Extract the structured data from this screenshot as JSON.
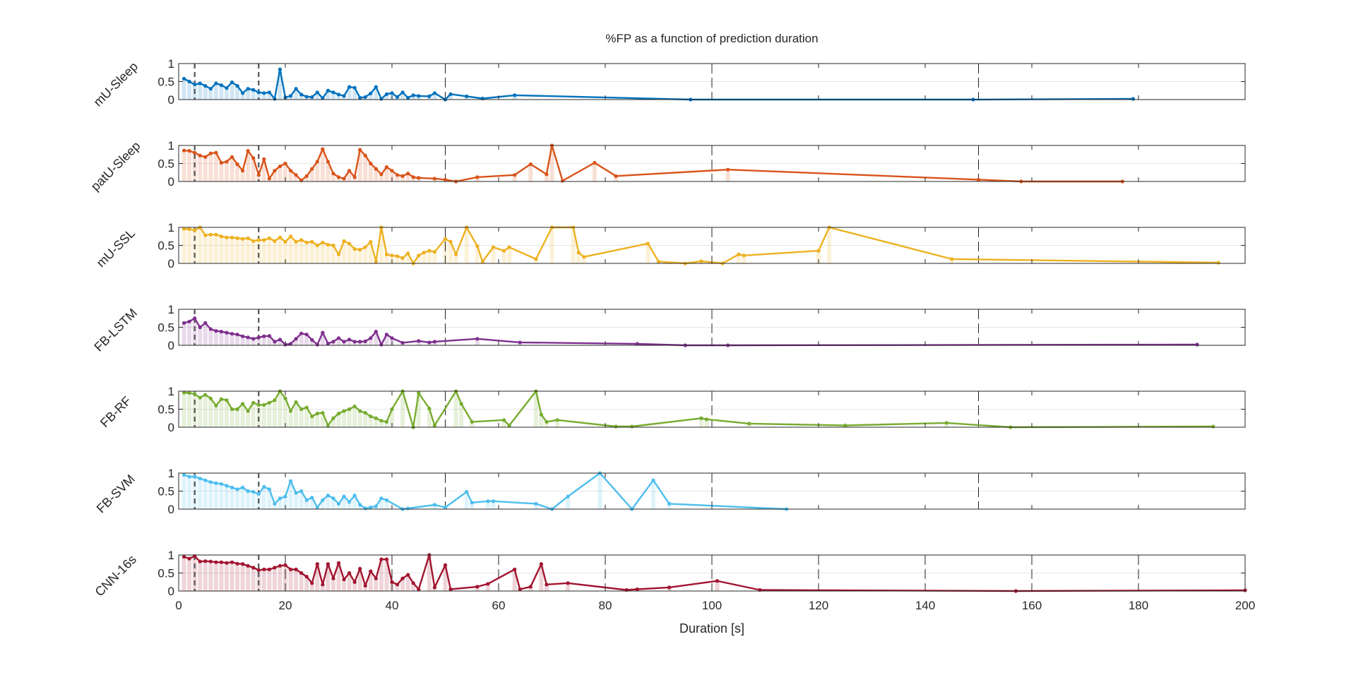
{
  "chart_data": {
    "type": "line",
    "title": "%FP as a function of prediction duration",
    "xlabel": "Duration [s]",
    "xlim": [
      0,
      200
    ],
    "xticks": [
      0,
      20,
      40,
      60,
      80,
      100,
      120,
      140,
      160,
      180,
      200
    ],
    "ylim": [
      0,
      1
    ],
    "yticks": [
      0,
      0.5,
      1
    ],
    "ytick_labels": [
      "0",
      "0.5",
      "1"
    ],
    "grid": "horizontal light gridlines",
    "reference_lines_dashed_gray": [
      3,
      15
    ],
    "reference_lines_dashed_black": [
      50,
      100,
      150
    ],
    "reference_lines_bottom_panel": [
      20,
      40,
      60,
      80,
      100,
      120,
      140,
      160,
      180
    ],
    "series": [
      {
        "name": "mU-Sleep",
        "color": "#0072BD",
        "x": [
          1,
          2,
          3,
          4,
          5,
          6,
          7,
          8,
          9,
          10,
          11,
          12,
          13,
          14,
          15,
          16,
          17,
          18,
          19,
          20,
          21,
          22,
          23,
          24,
          25,
          26,
          27,
          28,
          29,
          30,
          31,
          32,
          33,
          34,
          35,
          36,
          37,
          38,
          39,
          40,
          41,
          42,
          43,
          44,
          45,
          47,
          48,
          50,
          51,
          54,
          57,
          63,
          96,
          149,
          179
        ],
        "y": [
          0.58,
          0.5,
          0.42,
          0.45,
          0.38,
          0.3,
          0.45,
          0.4,
          0.32,
          0.48,
          0.38,
          0.18,
          0.3,
          0.27,
          0.2,
          0.18,
          0.2,
          0.02,
          0.84,
          0.06,
          0.1,
          0.3,
          0.14,
          0.08,
          0.07,
          0.2,
          0.04,
          0.25,
          0.2,
          0.14,
          0.1,
          0.35,
          0.33,
          0.05,
          0.07,
          0.17,
          0.35,
          0.02,
          0.15,
          0.18,
          0.07,
          0.2,
          0.05,
          0.12,
          0.1,
          0.09,
          0.18,
          0.0,
          0.15,
          0.09,
          0.03,
          0.12,
          0.0,
          0.0,
          0.02
        ]
      },
      {
        "name": "patU-Sleep",
        "color": "#D95319",
        "x": [
          1,
          2,
          3,
          4,
          5,
          6,
          7,
          8,
          9,
          10,
          11,
          12,
          13,
          14,
          15,
          16,
          17,
          18,
          19,
          20,
          21,
          22,
          23,
          24,
          25,
          26,
          27,
          28,
          29,
          30,
          31,
          32,
          33,
          34,
          35,
          36,
          37,
          38,
          39,
          40,
          41,
          42,
          43,
          44,
          45,
          48,
          50,
          52,
          56,
          63,
          66,
          69,
          70,
          72,
          78,
          82,
          103,
          150,
          158,
          177
        ],
        "y": [
          0.86,
          0.85,
          0.8,
          0.72,
          0.68,
          0.78,
          0.8,
          0.52,
          0.55,
          0.68,
          0.48,
          0.3,
          0.85,
          0.65,
          0.18,
          0.62,
          0.08,
          0.3,
          0.42,
          0.5,
          0.3,
          0.18,
          0.03,
          0.15,
          0.35,
          0.55,
          0.9,
          0.55,
          0.22,
          0.12,
          0.08,
          0.3,
          0.12,
          0.88,
          0.72,
          0.5,
          0.35,
          0.2,
          0.4,
          0.3,
          0.18,
          0.15,
          0.22,
          0.12,
          0.1,
          0.08,
          0.05,
          0.0,
          0.12,
          0.18,
          0.48,
          0.2,
          1.0,
          0.02,
          0.52,
          0.15,
          0.33,
          0.05,
          0.0,
          0.0
        ]
      },
      {
        "name": "mU-SSL",
        "color": "#EDB120",
        "x": [
          1,
          2,
          3,
          4,
          5,
          6,
          7,
          8,
          9,
          10,
          11,
          12,
          13,
          14,
          15,
          16,
          17,
          18,
          19,
          20,
          21,
          22,
          23,
          24,
          25,
          26,
          27,
          28,
          29,
          30,
          31,
          32,
          33,
          34,
          35,
          36,
          37,
          38,
          39,
          40,
          41,
          42,
          43,
          44,
          45,
          46,
          47,
          48,
          50,
          51,
          52,
          54,
          56,
          57,
          59,
          61,
          62,
          67,
          70,
          74,
          75,
          76,
          88,
          90,
          95,
          98,
          102,
          105,
          106,
          120,
          122,
          145,
          195
        ],
        "y": [
          0.96,
          0.95,
          0.92,
          1.0,
          0.78,
          0.8,
          0.8,
          0.75,
          0.72,
          0.72,
          0.7,
          0.68,
          0.7,
          0.62,
          0.65,
          0.65,
          0.7,
          0.62,
          0.72,
          0.6,
          0.75,
          0.6,
          0.65,
          0.58,
          0.6,
          0.5,
          0.58,
          0.52,
          0.5,
          0.25,
          0.62,
          0.55,
          0.4,
          0.38,
          0.45,
          0.6,
          0.05,
          1.0,
          0.25,
          0.22,
          0.2,
          0.15,
          0.28,
          0.0,
          0.22,
          0.3,
          0.35,
          0.32,
          0.68,
          0.6,
          0.25,
          1.0,
          0.48,
          0.05,
          0.45,
          0.35,
          0.45,
          0.12,
          1.0,
          1.0,
          0.3,
          0.18,
          0.55,
          0.05,
          0.0,
          0.06,
          0.0,
          0.25,
          0.22,
          0.35,
          1.0,
          0.12,
          0.02
        ]
      },
      {
        "name": "FB-LSTM",
        "color": "#7E2F8E",
        "x": [
          1,
          2,
          3,
          4,
          5,
          6,
          7,
          8,
          9,
          10,
          11,
          12,
          13,
          14,
          15,
          16,
          17,
          18,
          19,
          20,
          21,
          22,
          23,
          24,
          25,
          26,
          27,
          28,
          29,
          30,
          31,
          32,
          33,
          34,
          35,
          36,
          37,
          38,
          39,
          40,
          42,
          45,
          47,
          48,
          56,
          64,
          86,
          95,
          103,
          191
        ],
        "y": [
          0.62,
          0.66,
          0.75,
          0.5,
          0.62,
          0.45,
          0.4,
          0.38,
          0.35,
          0.32,
          0.3,
          0.25,
          0.22,
          0.18,
          0.22,
          0.25,
          0.26,
          0.1,
          0.16,
          0.02,
          0.04,
          0.18,
          0.33,
          0.3,
          0.15,
          0.02,
          0.35,
          0.05,
          0.1,
          0.2,
          0.1,
          0.16,
          0.1,
          0.1,
          0.11,
          0.2,
          0.38,
          0.02,
          0.3,
          0.2,
          0.07,
          0.12,
          0.08,
          0.1,
          0.18,
          0.08,
          0.04,
          0.0,
          0.0,
          0.02
        ]
      },
      {
        "name": "FB-RF",
        "color": "#77AC30",
        "x": [
          1,
          2,
          3,
          4,
          5,
          6,
          7,
          8,
          9,
          10,
          11,
          12,
          13,
          14,
          15,
          16,
          17,
          18,
          19,
          20,
          21,
          22,
          23,
          24,
          25,
          26,
          27,
          28,
          29,
          30,
          31,
          32,
          33,
          34,
          35,
          36,
          37,
          38,
          39,
          40,
          42,
          44,
          45,
          47,
          48,
          52,
          53,
          55,
          61,
          62,
          67,
          68,
          69,
          71,
          82,
          85,
          98,
          99,
          107,
          125,
          144,
          156,
          194
        ],
        "y": [
          0.96,
          0.95,
          0.92,
          0.82,
          0.9,
          0.8,
          0.6,
          0.78,
          0.75,
          0.5,
          0.5,
          0.65,
          0.45,
          0.68,
          0.62,
          0.62,
          0.68,
          0.75,
          1.0,
          0.8,
          0.45,
          0.7,
          0.5,
          0.55,
          0.3,
          0.38,
          0.4,
          0.05,
          0.25,
          0.38,
          0.45,
          0.5,
          0.58,
          0.45,
          0.4,
          0.3,
          0.25,
          0.18,
          0.15,
          0.5,
          1.0,
          0.0,
          0.95,
          0.52,
          0.05,
          1.0,
          0.65,
          0.15,
          0.2,
          0.05,
          1.0,
          0.35,
          0.15,
          0.2,
          0.02,
          0.02,
          0.25,
          0.22,
          0.1,
          0.05,
          0.12,
          0.0,
          0.02
        ]
      },
      {
        "name": "FB-SVM",
        "color": "#4DBEEE",
        "x": [
          1,
          2,
          3,
          4,
          5,
          6,
          7,
          8,
          9,
          10,
          11,
          12,
          13,
          14,
          15,
          16,
          17,
          18,
          19,
          20,
          21,
          22,
          23,
          24,
          25,
          26,
          27,
          28,
          29,
          30,
          31,
          32,
          33,
          34,
          35,
          36,
          37,
          38,
          39,
          42,
          43,
          48,
          50,
          54,
          55,
          58,
          59,
          67,
          70,
          73,
          79,
          85,
          89,
          92,
          114
        ],
        "y": [
          0.95,
          0.9,
          0.9,
          0.85,
          0.8,
          0.75,
          0.72,
          0.7,
          0.65,
          0.6,
          0.55,
          0.6,
          0.5,
          0.48,
          0.42,
          0.62,
          0.55,
          0.15,
          0.3,
          0.35,
          0.78,
          0.45,
          0.5,
          0.25,
          0.32,
          0.05,
          0.25,
          0.38,
          0.3,
          0.15,
          0.35,
          0.2,
          0.38,
          0.12,
          0.02,
          0.05,
          0.08,
          0.3,
          0.25,
          0.0,
          0.02,
          0.12,
          0.05,
          0.48,
          0.18,
          0.22,
          0.22,
          0.15,
          0.0,
          0.35,
          1.0,
          0.0,
          0.8,
          0.15,
          0.0
        ]
      },
      {
        "name": "CNN-16s",
        "color": "#A2142F",
        "x": [
          1,
          2,
          3,
          4,
          5,
          6,
          7,
          8,
          9,
          10,
          11,
          12,
          13,
          14,
          15,
          16,
          17,
          18,
          19,
          20,
          21,
          22,
          23,
          24,
          25,
          26,
          27,
          28,
          29,
          30,
          31,
          32,
          33,
          34,
          35,
          36,
          37,
          38,
          39,
          40,
          41,
          42,
          43,
          44,
          45,
          47,
          48,
          50,
          51,
          56,
          58,
          63,
          64,
          66,
          68,
          69,
          73,
          84,
          86,
          92,
          101,
          109,
          157,
          200
        ],
        "y": [
          0.95,
          0.9,
          0.97,
          0.82,
          0.83,
          0.82,
          0.8,
          0.8,
          0.78,
          0.8,
          0.76,
          0.75,
          0.7,
          0.65,
          0.58,
          0.6,
          0.6,
          0.65,
          0.7,
          0.72,
          0.6,
          0.6,
          0.5,
          0.4,
          0.22,
          0.75,
          0.18,
          0.75,
          0.35,
          0.78,
          0.32,
          0.5,
          0.25,
          0.62,
          0.15,
          0.55,
          0.35,
          0.88,
          0.88,
          0.25,
          0.18,
          0.35,
          0.45,
          0.22,
          0.05,
          1.0,
          0.1,
          0.72,
          0.05,
          0.12,
          0.2,
          0.6,
          0.05,
          0.12,
          0.75,
          0.18,
          0.22,
          0.03,
          0.05,
          0.1,
          0.28,
          0.03,
          0.0,
          0.02
        ]
      }
    ]
  }
}
